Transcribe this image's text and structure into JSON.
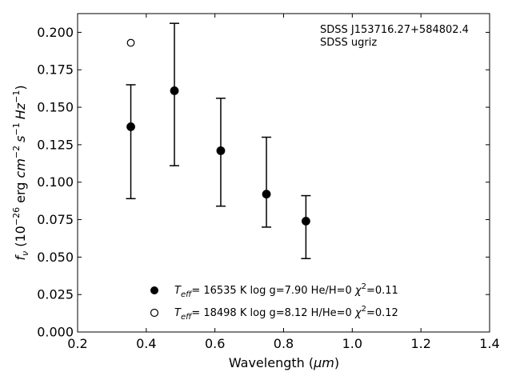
{
  "chart_data": {
    "type": "scatter",
    "xlabel_main": "Wavelength (",
    "xlabel_unit": "μm",
    "xlabel_close": ")",
    "ylabel_f": "f",
    "ylabel_sub": "ν",
    "ylabel_pre": " (10",
    "ylabel_exp1": "−26",
    "ylabel_erg": " erg ",
    "ylabel_cm": "cm",
    "ylabel_exp2": "−2",
    "ylabel_s": "s",
    "ylabel_exp3": "−1",
    "ylabel_hz": "Hz",
    "ylabel_exp4": "−1",
    "ylabel_close": ")",
    "xlim": [
      0.2,
      1.4
    ],
    "ylim": [
      0.0,
      0.2125
    ],
    "xticks": [
      "0.2",
      "0.4",
      "0.6",
      "0.8",
      "1.0",
      "1.2",
      "1.4"
    ],
    "xtick_values": [
      0.2,
      0.4,
      0.6,
      0.8,
      1.0,
      1.2,
      1.4
    ],
    "yticks": [
      "0.000",
      "0.025",
      "0.050",
      "0.075",
      "0.100",
      "0.125",
      "0.150",
      "0.175",
      "0.200"
    ],
    "ytick_values": [
      0.0,
      0.025,
      0.05,
      0.075,
      0.1,
      0.125,
      0.15,
      0.175,
      0.2
    ],
    "annotation": [
      "SDSS J153716.27+584802.4",
      "SDSS ugriz"
    ],
    "series": [
      {
        "marker": "filled",
        "x": [
          0.355,
          0.482,
          0.617,
          0.75,
          0.865
        ],
        "y": [
          0.137,
          0.161,
          0.121,
          0.092,
          0.074
        ],
        "yerr_low": [
          0.089,
          0.111,
          0.084,
          0.07,
          0.049
        ],
        "yerr_high": [
          0.165,
          0.206,
          0.156,
          0.13,
          0.091
        ]
      },
      {
        "marker": "open",
        "x": [
          0.355
        ],
        "y": [
          0.193
        ]
      }
    ],
    "legend": [
      {
        "marker": "filled",
        "t": "T",
        "t_sub": "eff",
        "text_a": "= 16535 K  log g=7.90  He/H=0  ",
        "chi": "χ",
        "chi_sup": "2",
        "text_b": "=0.11"
      },
      {
        "marker": "open",
        "t": "T",
        "t_sub": "eff",
        "text_a": "= 18498 K  log g=8.12  H/He=0  ",
        "chi": "χ",
        "chi_sup": "2",
        "text_b": "=0.12"
      }
    ],
    "legend_position": "lower-center",
    "grid": false,
    "colors": {
      "marker": "#000000",
      "axes": "#000000"
    }
  }
}
